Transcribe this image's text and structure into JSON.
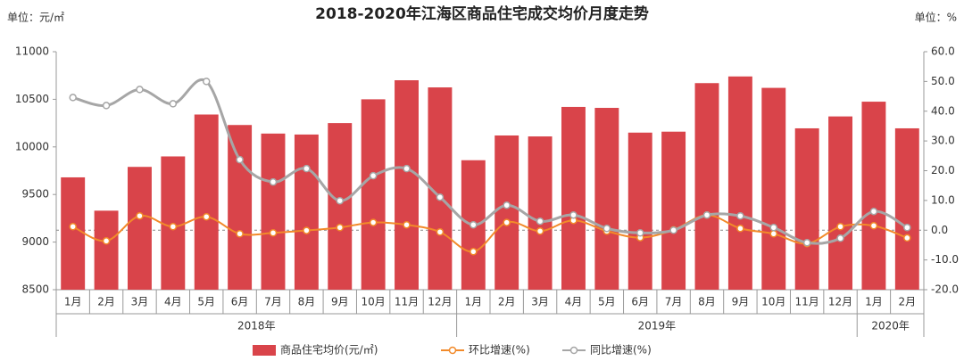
{
  "chart_data": {
    "type": "bar",
    "title": "2018-2020年江海区商品住宅成交均价月度走势",
    "y_unit": "单位：元/㎡",
    "y2_unit": "单位：%",
    "categories": [
      "1月",
      "2月",
      "3月",
      "4月",
      "5月",
      "6月",
      "7月",
      "8月",
      "9月",
      "10月",
      "11月",
      "12月",
      "1月",
      "2月",
      "3月",
      "4月",
      "5月",
      "6月",
      "7月",
      "8月",
      "9月",
      "10月",
      "11月",
      "12月",
      "1月",
      "2月"
    ],
    "groups": [
      "2018年",
      "2019年",
      "2020年"
    ],
    "series": [
      {
        "name": "商品住宅均价(元/㎡)",
        "type": "bar",
        "color": "#d9444a",
        "values": [
          9680,
          9330,
          9790,
          9900,
          10340,
          10230,
          10140,
          10130,
          10250,
          10500,
          10700,
          10625,
          9860,
          10120,
          10110,
          10420,
          10410,
          10150,
          10160,
          10670,
          10740,
          10620,
          10195,
          10320,
          10475,
          10195
        ]
      },
      {
        "name": "环比增速(%)",
        "type": "line",
        "axis": "y2",
        "color": "#f28a2a",
        "values": [
          1.2,
          -3.6,
          4.8,
          1.2,
          4.5,
          -1.2,
          -0.9,
          -0.1,
          0.9,
          2.6,
          1.8,
          -0.6,
          -7.2,
          2.6,
          -0.3,
          3.3,
          -0.3,
          -2.5,
          0.1,
          5.1,
          0.6,
          -1.2,
          -4.5,
          1.2,
          1.5,
          -2.6
        ]
      },
      {
        "name": "同比增速(%)",
        "type": "line",
        "axis": "y2",
        "color": "#a6a6a6",
        "values": [
          44.6,
          41.9,
          47.3,
          42.5,
          50.0,
          23.7,
          16.2,
          20.7,
          9.9,
          18.3,
          20.7,
          11.1,
          1.8,
          8.4,
          3.0,
          5.1,
          0.6,
          -0.9,
          0.0,
          5.1,
          4.8,
          0.9,
          -4.2,
          -2.7,
          6.3,
          0.9
        ]
      }
    ],
    "ylim": [
      8500,
      11000
    ],
    "yticks": [
      8500,
      9000,
      9500,
      10000,
      10500,
      11000
    ],
    "y2lim": [
      -20,
      60
    ],
    "y2ticks": [
      {
        "value": -20,
        "label": "-20.0"
      },
      {
        "value": -10,
        "label": "-10.0"
      },
      {
        "value": 0,
        "label": "0.0"
      },
      {
        "value": 10,
        "label": "10.0"
      },
      {
        "value": 20,
        "label": "20.0"
      },
      {
        "value": 30,
        "label": "30.0"
      },
      {
        "value": 40,
        "label": "40.0"
      },
      {
        "value": 50,
        "label": "50.0"
      },
      {
        "value": 60,
        "label": "60.0"
      }
    ]
  }
}
